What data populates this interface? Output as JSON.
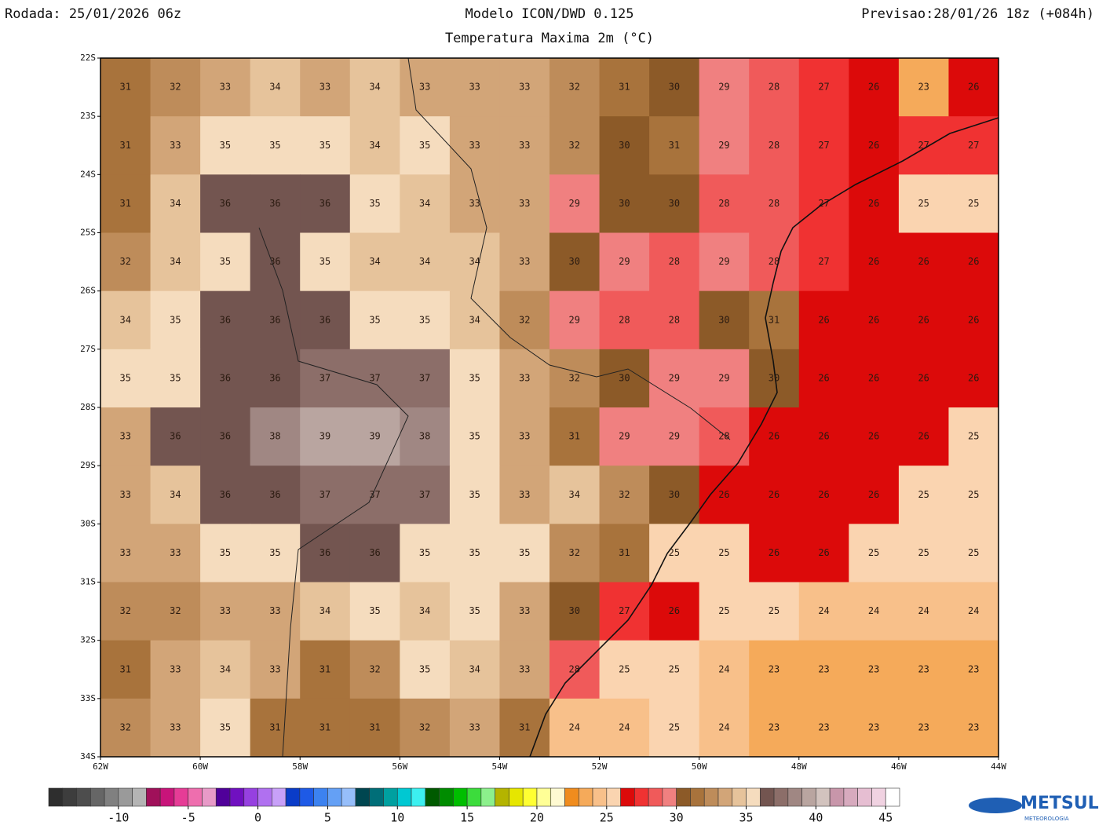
{
  "header": {
    "run": "Rodada: 25/01/2026 06z",
    "model": "Modelo ICON/DWD 0.125",
    "subtitle": "Temperatura Maxima 2m (°C)",
    "forecast": "Previsao:28/01/26 18z (+084h)"
  },
  "map": {
    "lon_lim": [
      -62,
      -44
    ],
    "lat_lim": [
      -22,
      -34
    ],
    "lat_ticks": [
      {
        "value": -22,
        "label": "22S"
      },
      {
        "value": -23,
        "label": "23S"
      },
      {
        "value": -24,
        "label": "24S"
      },
      {
        "value": -25,
        "label": "25S"
      },
      {
        "value": -26,
        "label": "26S"
      },
      {
        "value": -27,
        "label": "27S"
      },
      {
        "value": -28,
        "label": "28S"
      },
      {
        "value": -29,
        "label": "29S"
      },
      {
        "value": -30,
        "label": "30S"
      },
      {
        "value": -31,
        "label": "31S"
      },
      {
        "value": -32,
        "label": "32S"
      },
      {
        "value": -33,
        "label": "33S"
      },
      {
        "value": -34,
        "label": "34S"
      }
    ],
    "lon_ticks": [
      {
        "value": -62,
        "label": "62W"
      },
      {
        "value": -60,
        "label": "60W"
      },
      {
        "value": -58,
        "label": "58W"
      },
      {
        "value": -56,
        "label": "56W"
      },
      {
        "value": -54,
        "label": "54W"
      },
      {
        "value": -52,
        "label": "52W"
      },
      {
        "value": -50,
        "label": "50W"
      },
      {
        "value": -48,
        "label": "48W"
      },
      {
        "value": -46,
        "label": "46W"
      },
      {
        "value": -44,
        "label": "44W"
      }
    ],
    "grid": [
      [
        31,
        32,
        33,
        34,
        33,
        34,
        33,
        33,
        33,
        32,
        31,
        30,
        29,
        28,
        27,
        26,
        23,
        26
      ],
      [
        31,
        33,
        35,
        35,
        35,
        34,
        35,
        33,
        33,
        32,
        30,
        31,
        29,
        28,
        27,
        26,
        27,
        27
      ],
      [
        31,
        34,
        36,
        36,
        36,
        35,
        34,
        33,
        33,
        29,
        30,
        30,
        28,
        28,
        27,
        26,
        25,
        25
      ],
      [
        32,
        34,
        35,
        36,
        35,
        34,
        34,
        34,
        33,
        30,
        29,
        28,
        29,
        28,
        27,
        26,
        26,
        26
      ],
      [
        34,
        35,
        36,
        36,
        36,
        35,
        35,
        34,
        32,
        29,
        28,
        28,
        30,
        31,
        26,
        26,
        26,
        26
      ],
      [
        35,
        35,
        36,
        36,
        37,
        37,
        37,
        35,
        33,
        32,
        30,
        29,
        29,
        30,
        26,
        26,
        26,
        26
      ],
      [
        33,
        36,
        36,
        38,
        39,
        39,
        38,
        35,
        33,
        31,
        29,
        29,
        28,
        26,
        26,
        26,
        26,
        25
      ],
      [
        33,
        34,
        36,
        36,
        37,
        37,
        37,
        35,
        33,
        34,
        32,
        30,
        26,
        26,
        26,
        26,
        25,
        25
      ],
      [
        33,
        33,
        35,
        35,
        36,
        36,
        35,
        35,
        35,
        32,
        31,
        25,
        25,
        26,
        26,
        25,
        25,
        25
      ],
      [
        32,
        32,
        33,
        33,
        34,
        35,
        34,
        35,
        33,
        30,
        27,
        26,
        25,
        25,
        24,
        24,
        24,
        24
      ],
      [
        31,
        33,
        34,
        33,
        31,
        32,
        35,
        34,
        33,
        28,
        25,
        25,
        24,
        23,
        23,
        23,
        23,
        23
      ],
      [
        32,
        33,
        35,
        31,
        31,
        31,
        32,
        33,
        31,
        24,
        24,
        25,
        24,
        23,
        23,
        23,
        23,
        23
      ]
    ]
  },
  "colorbar": {
    "lim": [
      -15,
      46
    ],
    "ticks": [
      -10,
      -5,
      0,
      5,
      10,
      15,
      20,
      25,
      30,
      35,
      40,
      45
    ],
    "colors": [
      "#2e2e2e",
      "#3d3d3d",
      "#4d4d4d",
      "#666666",
      "#808080",
      "#9a9a9a",
      "#b4b4b4",
      "#a0105a",
      "#c8147a",
      "#e63c96",
      "#ee6eae",
      "#e89ac8",
      "#50009a",
      "#7010c0",
      "#9640e0",
      "#b070f0",
      "#c8a0f8",
      "#0a3cc8",
      "#1e5ae6",
      "#3c82f0",
      "#64a0f5",
      "#96befa",
      "#004650",
      "#006e78",
      "#00a0a0",
      "#00c8d2",
      "#3cf0f0",
      "#005a00",
      "#008c00",
      "#00be00",
      "#3cdc3c",
      "#8cf08c",
      "#b4b400",
      "#e6e600",
      "#ffff32",
      "#ffff96",
      "#fffad2",
      "#f08c1e",
      "#f5aa5a",
      "#f8c08a",
      "#fad4b0",
      "#dc0a0a",
      "#f03232",
      "#f05a5a",
      "#f08080",
      "#8c5a28",
      "#a8733c",
      "#be8c5a",
      "#d2a578",
      "#e6c39b",
      "#f5dcbe",
      "#735550",
      "#8c6e69",
      "#a08783",
      "#b9a5a0",
      "#d2c3be",
      "#c896aa",
      "#d7aabe",
      "#e6bed2",
      "#f0d2e1",
      "#ffffff"
    ]
  },
  "logo": {
    "name": "METSUL",
    "tagline": "METEOROLOGIA"
  }
}
